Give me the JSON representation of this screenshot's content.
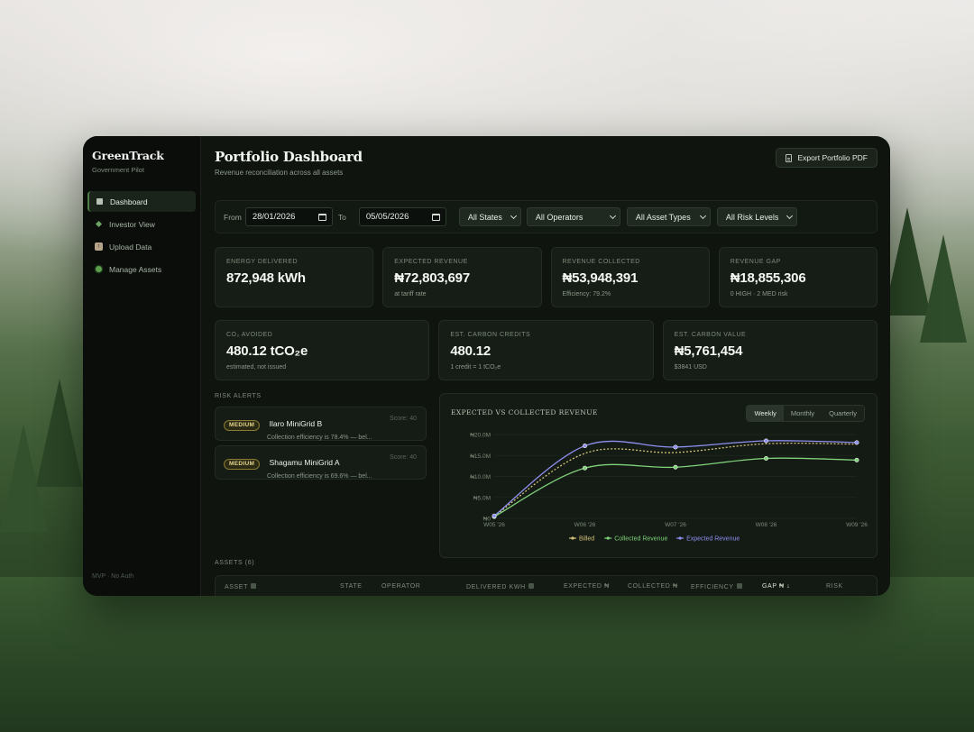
{
  "sidebar": {
    "brand_name": "GreenTrack",
    "brand_sub": "Government Pilot",
    "items": [
      {
        "label": "Dashboard",
        "icon": "dashboard-square-icon",
        "active": true
      },
      {
        "label": "Investor View",
        "icon": "diamond-icon",
        "active": false
      },
      {
        "label": "Upload Data",
        "icon": "upload-icon",
        "active": false
      },
      {
        "label": "Manage Assets",
        "icon": "dot-icon",
        "active": false
      }
    ],
    "footer": "MVP · No Auth"
  },
  "header": {
    "title": "Portfolio Dashboard",
    "subtitle": "Revenue reconciliation across all assets",
    "export_label": "Export Portfolio PDF"
  },
  "filters": {
    "from_label": "From",
    "from_value": "28/01/2026",
    "to_label": "To",
    "to_value": "05/05/2026",
    "states": "All States",
    "operators": "All Operators",
    "asset_types": "All Asset Types",
    "risk_levels": "All Risk Levels"
  },
  "kpis": [
    {
      "label": "Energy Delivered",
      "value": "872,948 kWh",
      "note": ""
    },
    {
      "label": "Expected Revenue",
      "value": "₦72,803,697",
      "note": "at tariff rate"
    },
    {
      "label": "Revenue Collected",
      "value": "₦53,948,391",
      "note": "Efficiency: 79.2%"
    },
    {
      "label": "Revenue Gap",
      "value": "₦18,855,306",
      "note": "0 HIGH · 2 MED risk"
    }
  ],
  "kpis2": [
    {
      "label": "CO₂ Avoided",
      "value": "480.12 tCO₂e",
      "note": "estimated, not issued"
    },
    {
      "label": "Est. Carbon Credits",
      "value": "480.12",
      "note": "1 credit = 1 tCO₂e"
    },
    {
      "label": "Est. Carbon Value",
      "value": "₦5,761,454",
      "note": "$3841 USD"
    }
  ],
  "alerts": {
    "label": "Risk Alerts",
    "items": [
      {
        "badge": "MEDIUM",
        "name": "Ilaro MiniGrid B",
        "score": "Score: 40",
        "desc": "Collection efficiency is 78.4% — bel..."
      },
      {
        "badge": "MEDIUM",
        "name": "Shagamu MiniGrid A",
        "score": "Score: 40",
        "desc": "Collection efficiency is 69.6% — bel..."
      }
    ]
  },
  "chart_tabs": [
    "Weekly",
    "Monthly",
    "Quarterly"
  ],
  "chart_data": {
    "type": "line",
    "title": "Expected vs Collected Revenue",
    "categories": [
      "W05 '26",
      "W06 '26",
      "W07 '26",
      "W08 '26",
      "W09 '26"
    ],
    "y_tick_labels": [
      "₦0",
      "₦5.0M",
      "₦10.0M",
      "₦15.0M",
      "₦20.0M"
    ],
    "ylim": [
      0,
      20000000
    ],
    "grid": true,
    "legend_position": "bottom",
    "series": [
      {
        "name": "Billed",
        "values": [
          500000,
          15500000,
          15700000,
          17800000,
          17700000
        ],
        "color": "#d4c27a",
        "dashed": true
      },
      {
        "name": "Collected Revenue",
        "values": [
          400000,
          12000000,
          12200000,
          14300000,
          13900000
        ],
        "color": "#7fd17a",
        "dashed": false
      },
      {
        "name": "Expected Revenue",
        "values": [
          600000,
          17300000,
          17000000,
          18500000,
          18100000
        ],
        "color": "#8f8ff0",
        "dashed": false
      }
    ]
  },
  "assets": {
    "label": "Assets (6)",
    "columns": [
      "Asset",
      "State",
      "Operator",
      "Delivered kWh",
      "Expected ₦",
      "Collected ₦",
      "Efficiency",
      "Gap ₦ ↓",
      "Risk"
    ]
  },
  "colors": {
    "accent": "#4f7d49",
    "medium_badge": "#e5d48a"
  }
}
